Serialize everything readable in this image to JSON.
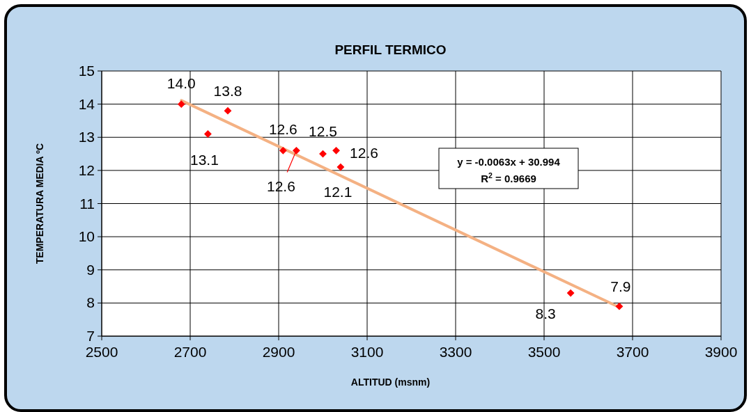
{
  "chart_data": {
    "type": "scatter",
    "title": "PERFIL TERMICO",
    "xlabel": "ALTITUD (msnm)",
    "ylabel": "TEMPERATURA MEDIA ºC",
    "xlim": [
      2500,
      3900
    ],
    "xticks": [
      2500,
      2700,
      2900,
      3100,
      3300,
      3500,
      3700,
      3900
    ],
    "ylim": [
      7,
      15
    ],
    "yticks": [
      7,
      8,
      9,
      10,
      11,
      12,
      13,
      14,
      15
    ],
    "grid": true,
    "annotations": [
      "y = -0.0063x + 30.994",
      "R$^{2}$ = 0.9669"
    ],
    "series": [
      {
        "color": "#ff0000",
        "marker": "diamond",
        "x": [
          2680,
          2740,
          2785,
          2910,
          2940,
          3000,
          3030,
          3040,
          3560,
          3670
        ],
        "values": [
          14.0,
          13.1,
          13.8,
          12.6,
          12.6,
          12.5,
          12.6,
          12.1,
          8.3,
          7.9
        ],
        "value_labels": [
          "14.0",
          "13.1",
          "13.8",
          "12.6",
          "12.6",
          "12.5",
          "12.6",
          "12.1",
          "8.3",
          "7.9"
        ]
      },
      {
        "type": "line",
        "marker": "none",
        "color": "#f4b183",
        "x": [
          2680,
          3670
        ],
        "values": [
          14.11,
          7.87
        ]
      }
    ]
  }
}
